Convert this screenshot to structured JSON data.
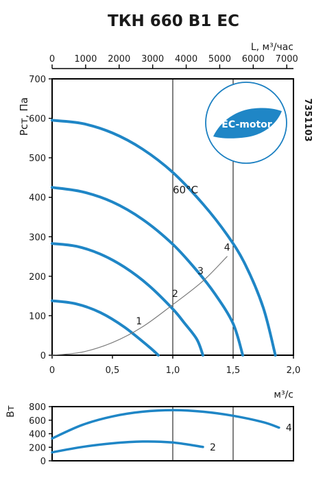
{
  "title": "ТКН 660 B1 EC",
  "code": "7351103",
  "badge": {
    "label": "EC-motor",
    "color": "#1a7fc1"
  },
  "colors": {
    "curve": "#1f86c6",
    "system": "#7a7a7a",
    "grid": "#000000"
  },
  "chart_data": [
    {
      "type": "line",
      "title": "ТКН 660 B1 EC",
      "ylabel": "Pст, Па",
      "xlabel": "м³/с",
      "x2label": "L, м³/час",
      "xlim": [
        0,
        2.0
      ],
      "ylim": [
        0,
        700
      ],
      "x2lim": [
        0,
        7200
      ],
      "xticks": [
        0,
        0.5,
        1.0,
        1.5,
        2.0
      ],
      "xtick_labels": [
        "0",
        "0,5",
        "1,0",
        "1,5",
        "2,0"
      ],
      "x2ticks": [
        0,
        1000,
        2000,
        3000,
        4000,
        5000,
        6000,
        7000
      ],
      "x2tick_labels": [
        "0",
        "1000",
        "2000",
        "3000",
        "4000",
        "5000",
        "6000",
        "7000"
      ],
      "yticks": [
        0,
        100,
        200,
        300,
        400,
        500,
        600,
        700
      ],
      "ytick_labels": [
        "0",
        "100",
        "200",
        "300",
        "400",
        "500",
        "600",
        "700"
      ],
      "grid": "vertical at 1.0 and 1.5 only",
      "annotations": [
        {
          "text": "60°C",
          "x": 1.0,
          "y": 410
        }
      ],
      "series": [
        {
          "x": [
            0,
            0.2,
            0.4,
            0.6,
            0.8,
            0.88
          ],
          "y": [
            138,
            130,
            108,
            71,
            22,
            0
          ]
        },
        {
          "x": [
            0,
            0.2,
            0.4,
            0.6,
            0.8,
            1.0,
            1.1,
            1.2,
            1.25
          ],
          "y": [
            283,
            276,
            256,
            223,
            177,
            117,
            80,
            40,
            0
          ]
        },
        {
          "x": [
            0,
            0.25,
            0.5,
            0.75,
            1.0,
            1.2,
            1.35,
            1.5,
            1.58
          ],
          "y": [
            425,
            414,
            388,
            344,
            281,
            214,
            155,
            80,
            0
          ]
        },
        {
          "x": [
            0,
            0.25,
            0.5,
            0.75,
            1.0,
            1.25,
            1.45,
            1.6,
            1.75,
            1.85
          ],
          "y": [
            595,
            587,
            563,
            522,
            463,
            383,
            305,
            230,
            120,
            0
          ]
        },
        {
          "type": "system",
          "x": [
            0,
            0.25,
            0.5,
            0.75,
            1.0,
            1.25,
            1.45
          ],
          "y": [
            0,
            8,
            32,
            72,
            128,
            188,
            250
          ]
        }
      ],
      "point_labels": [
        {
          "text": "1",
          "x": 0.72,
          "y": 78
        },
        {
          "text": "2",
          "x": 1.02,
          "y": 148
        },
        {
          "text": "3",
          "x": 1.23,
          "y": 205
        },
        {
          "text": "4",
          "x": 1.45,
          "y": 265
        }
      ]
    },
    {
      "type": "line",
      "ylabel": "Вт",
      "xlim": [
        0,
        2.0
      ],
      "ylim": [
        0,
        800
      ],
      "yticks": [
        0,
        200,
        400,
        600,
        800
      ],
      "ytick_labels": [
        "0",
        "200",
        "400",
        "600",
        "800"
      ],
      "grid": "vertical at 1.0 and 1.5 only",
      "series": [
        {
          "name": "4",
          "x": [
            0,
            0.25,
            0.5,
            0.75,
            1.0,
            1.25,
            1.5,
            1.75,
            1.88
          ],
          "y": [
            330,
            530,
            655,
            725,
            748,
            725,
            665,
            570,
            490
          ]
        },
        {
          "name": "2",
          "x": [
            0,
            0.25,
            0.5,
            0.75,
            1.0,
            1.25
          ],
          "y": [
            125,
            205,
            258,
            285,
            270,
            205
          ]
        }
      ]
    }
  ]
}
